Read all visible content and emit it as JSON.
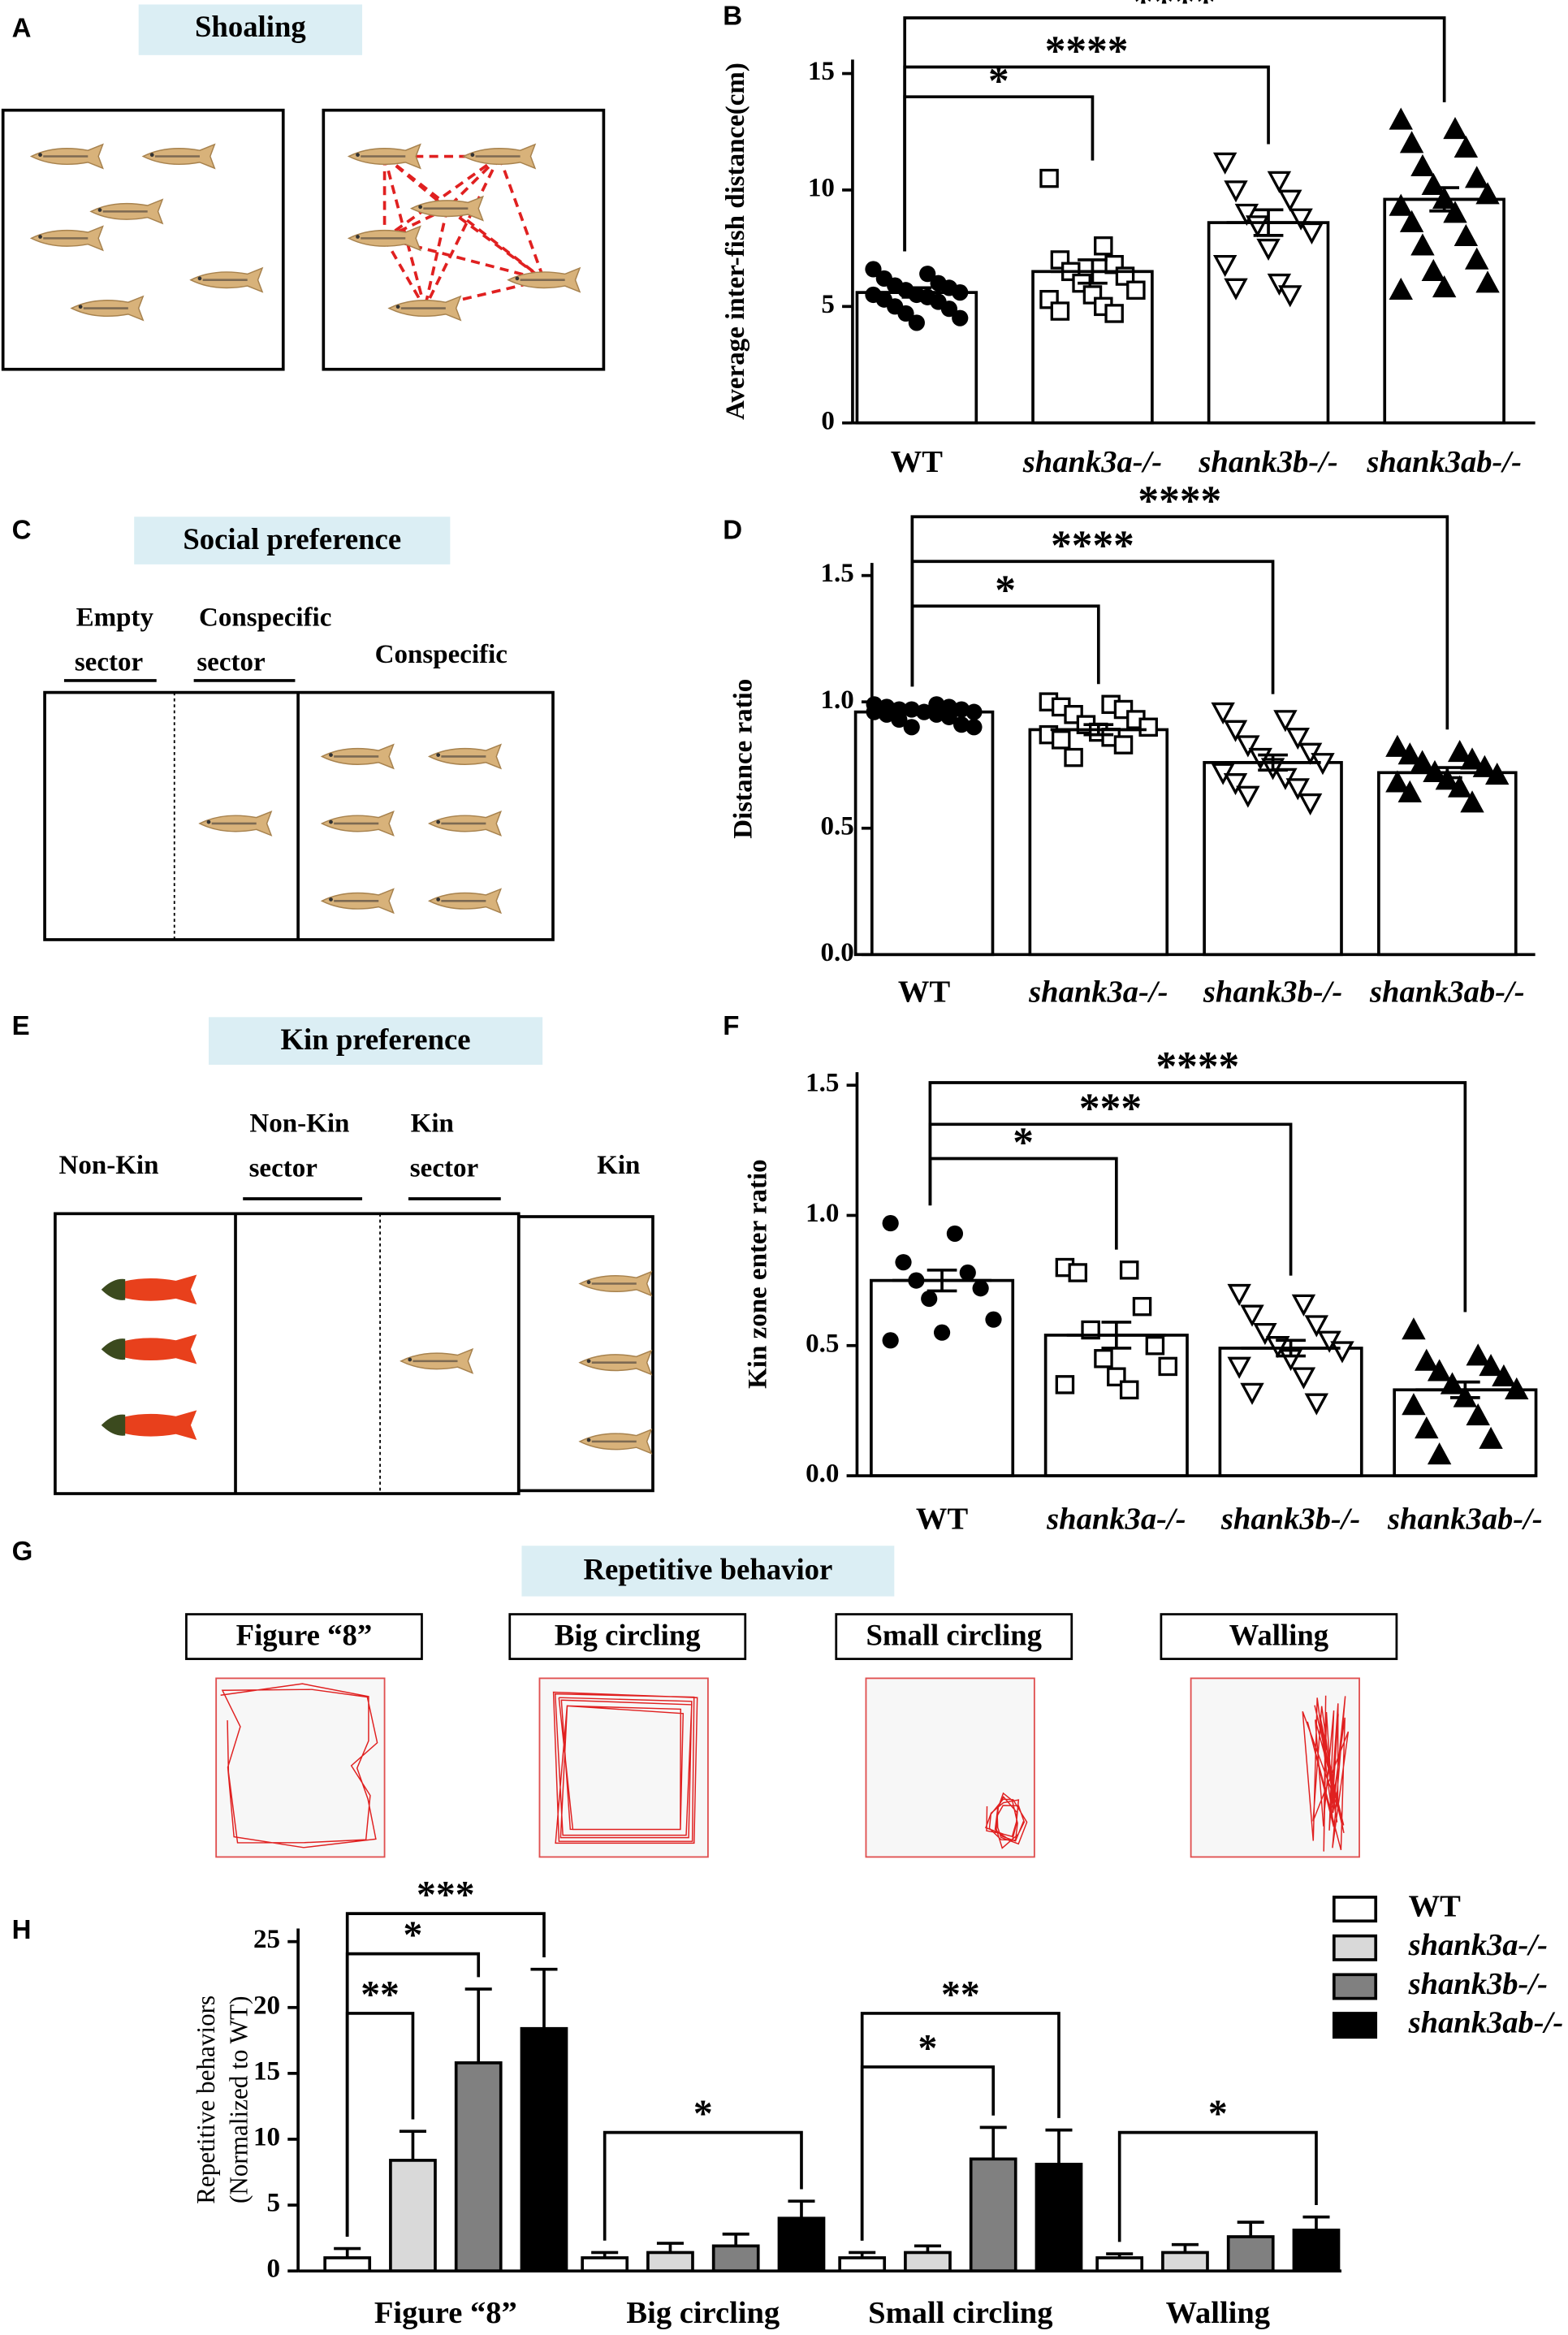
{
  "panels": {
    "letters": [
      "A",
      "B",
      "C",
      "D",
      "E",
      "F",
      "G",
      "H"
    ],
    "shoaling": {
      "title": "Shoaling"
    },
    "social": {
      "title": "Social preference",
      "empty": [
        "Empty",
        "sector"
      ],
      "conspecific_sector": [
        "Conspecific",
        "sector"
      ],
      "conspecific": "Conspecific"
    },
    "kin": {
      "title": "Kin preference",
      "non_kin": "Non-Kin",
      "non_kin_sector": [
        "Non-Kin",
        "sector"
      ],
      "kin_sector": [
        "Kin",
        "sector"
      ],
      "kin": "Kin"
    },
    "repetitive": {
      "title": "Repetitive behavior",
      "patterns": [
        "Figure “8”",
        "Big circling",
        "Small circling",
        "Walling"
      ]
    }
  },
  "chart_data": [
    {
      "type": "bar",
      "ylabel": "Average inter-fish distance(cm)",
      "categories": [
        "WT",
        "shank3a-/-",
        "shank3b-/-",
        "shank3ab-/-"
      ],
      "values": [
        5.6,
        6.5,
        8.6,
        9.6
      ],
      "errors": [
        0.2,
        0.5,
        0.55,
        0.5
      ],
      "color": "#ffffff",
      "markers": [
        "circle",
        "square",
        "triangle-down",
        "triangle-up"
      ],
      "points": [
        [
          6.6,
          6.4,
          6.2,
          6.0,
          5.9,
          5.8,
          5.7,
          5.6,
          5.5,
          5.5,
          5.4,
          5.3,
          5.2,
          5.0,
          4.9,
          4.7,
          4.5,
          4.3
        ],
        [
          10.5,
          7.6,
          7.0,
          6.8,
          6.5,
          6.3,
          6.0,
          5.7,
          5.5,
          5.3,
          5.0,
          4.8,
          4.7
        ],
        [
          11.2,
          10.4,
          10.0,
          9.6,
          9.0,
          8.8,
          8.5,
          8.2,
          7.5,
          6.8,
          6.0,
          5.8,
          5.5
        ],
        [
          13.0,
          12.6,
          12.0,
          11.8,
          11.0,
          10.5,
          10.2,
          9.8,
          9.6,
          9.3,
          9.0,
          8.6,
          8.0,
          7.6,
          7.0,
          6.5,
          6.0,
          5.8,
          5.7
        ]
      ],
      "ylim": [
        0,
        15.6
      ],
      "yticks": [
        0,
        5,
        10,
        15
      ],
      "comparisons": [
        {
          "pair": [
            0,
            1
          ],
          "label": "*"
        },
        {
          "pair": [
            0,
            2
          ],
          "label": "****"
        },
        {
          "pair": [
            0,
            3
          ],
          "label": "****"
        }
      ]
    },
    {
      "type": "bar",
      "ylabel": "Distance ratio",
      "categories": [
        "WT",
        "shank3a-/-",
        "shank3b-/-",
        "shank3ab-/-"
      ],
      "values": [
        0.96,
        0.89,
        0.76,
        0.72
      ],
      "errors": [
        0.01,
        0.02,
        0.03,
        0.02
      ],
      "color": "#ffffff",
      "markers": [
        "circle",
        "square",
        "triangle-down",
        "triangle-up"
      ],
      "points": [
        [
          0.99,
          0.99,
          0.98,
          0.98,
          0.97,
          0.97,
          0.97,
          0.96,
          0.96,
          0.96,
          0.95,
          0.95,
          0.94,
          0.93,
          0.91,
          0.9,
          0.9
        ],
        [
          1.0,
          0.99,
          0.98,
          0.97,
          0.95,
          0.93,
          0.91,
          0.9,
          0.88,
          0.87,
          0.86,
          0.85,
          0.83,
          0.78
        ],
        [
          0.96,
          0.93,
          0.89,
          0.86,
          0.83,
          0.8,
          0.78,
          0.76,
          0.74,
          0.72,
          0.7,
          0.68,
          0.66,
          0.63,
          0.6
        ],
        [
          0.82,
          0.8,
          0.79,
          0.77,
          0.76,
          0.74,
          0.72,
          0.71,
          0.69,
          0.68,
          0.66,
          0.64,
          0.6
        ]
      ],
      "ylim": [
        0,
        1.55
      ],
      "yticks": [
        {
          "value": 0,
          "label": "0.0"
        },
        0.5,
        {
          "value": 1,
          "label": "1.0"
        },
        1.5
      ],
      "comparisons": [
        {
          "pair": [
            0,
            1
          ],
          "label": "*"
        },
        {
          "pair": [
            0,
            2
          ],
          "label": "****"
        },
        {
          "pair": [
            0,
            3
          ],
          "label": "****"
        }
      ]
    },
    {
      "type": "bar",
      "ylabel": "Kin zone enter ratio",
      "categories": [
        "WT",
        "shank3a-/-",
        "shank3b-/-",
        "shank3ab-/-"
      ],
      "values": [
        0.75,
        0.54,
        0.49,
        0.33
      ],
      "errors": [
        0.04,
        0.05,
        0.03,
        0.03
      ],
      "color": "#ffffff",
      "markers": [
        "circle",
        "square",
        "triangle-down",
        "triangle-up"
      ],
      "points": [
        [
          0.97,
          0.93,
          0.82,
          0.78,
          0.75,
          0.72,
          0.68,
          0.6,
          0.55,
          0.52
        ],
        [
          0.8,
          0.79,
          0.78,
          0.65,
          0.56,
          0.5,
          0.45,
          0.42,
          0.38,
          0.35,
          0.33
        ],
        [
          0.7,
          0.66,
          0.62,
          0.58,
          0.55,
          0.52,
          0.5,
          0.48,
          0.45,
          0.42,
          0.38,
          0.32,
          0.28
        ],
        [
          0.56,
          0.46,
          0.44,
          0.42,
          0.4,
          0.38,
          0.35,
          0.33,
          0.3,
          0.27,
          0.23,
          0.18,
          0.14,
          0.08
        ]
      ],
      "ylim": [
        0,
        1.55
      ],
      "yticks": [
        {
          "value": 0,
          "label": "0.0"
        },
        0.5,
        {
          "value": 1,
          "label": "1.0"
        },
        1.5
      ],
      "comparisons": [
        {
          "pair": [
            0,
            1
          ],
          "label": "*"
        },
        {
          "pair": [
            0,
            2
          ],
          "label": "***"
        },
        {
          "pair": [
            0,
            3
          ],
          "label": "****"
        }
      ]
    },
    {
      "type": "grouped_bar",
      "ylabel": [
        "Repetitive behaviors",
        "(Normalized to WT)"
      ],
      "categories": [
        "Figure “8”",
        "Big circling",
        "Small circling",
        "Walling"
      ],
      "series": [
        {
          "name": "WT",
          "color": "#ffffff",
          "values": [
            1,
            1,
            1,
            1
          ],
          "errors": [
            0.7,
            0.4,
            0.4,
            0.3
          ]
        },
        {
          "name": "shank3a-/-",
          "color": "#d9d9d9",
          "values": [
            8.4,
            1.4,
            1.4,
            1.4
          ],
          "errors": [
            2.2,
            0.7,
            0.5,
            0.6
          ]
        },
        {
          "name": "shank3b-/-",
          "color": "#808080",
          "values": [
            15.8,
            1.9,
            8.5,
            2.6
          ],
          "errors": [
            5.6,
            0.9,
            2.4,
            1.1
          ]
        },
        {
          "name": "shank3ab-/-",
          "color": "#000000",
          "values": [
            18.4,
            4.0,
            8.1,
            3.1
          ],
          "errors": [
            4.5,
            1.3,
            2.6,
            1.0
          ]
        }
      ],
      "ylim": [
        0,
        26
      ],
      "yticks": [
        0,
        5,
        10,
        15,
        20,
        25
      ],
      "legend": "upper right",
      "comparisons": [
        {
          "group": 0,
          "pair": [
            0,
            1
          ],
          "label": "**"
        },
        {
          "group": 0,
          "pair": [
            0,
            2
          ],
          "label": "*"
        },
        {
          "group": 0,
          "pair": [
            0,
            3
          ],
          "label": "***"
        },
        {
          "group": 1,
          "pair": [
            0,
            3
          ],
          "label": "*"
        },
        {
          "group": 2,
          "pair": [
            0,
            2
          ],
          "label": "*"
        },
        {
          "group": 2,
          "pair": [
            0,
            3
          ],
          "label": "**"
        },
        {
          "group": 3,
          "pair": [
            0,
            3
          ],
          "label": "*"
        }
      ]
    }
  ]
}
